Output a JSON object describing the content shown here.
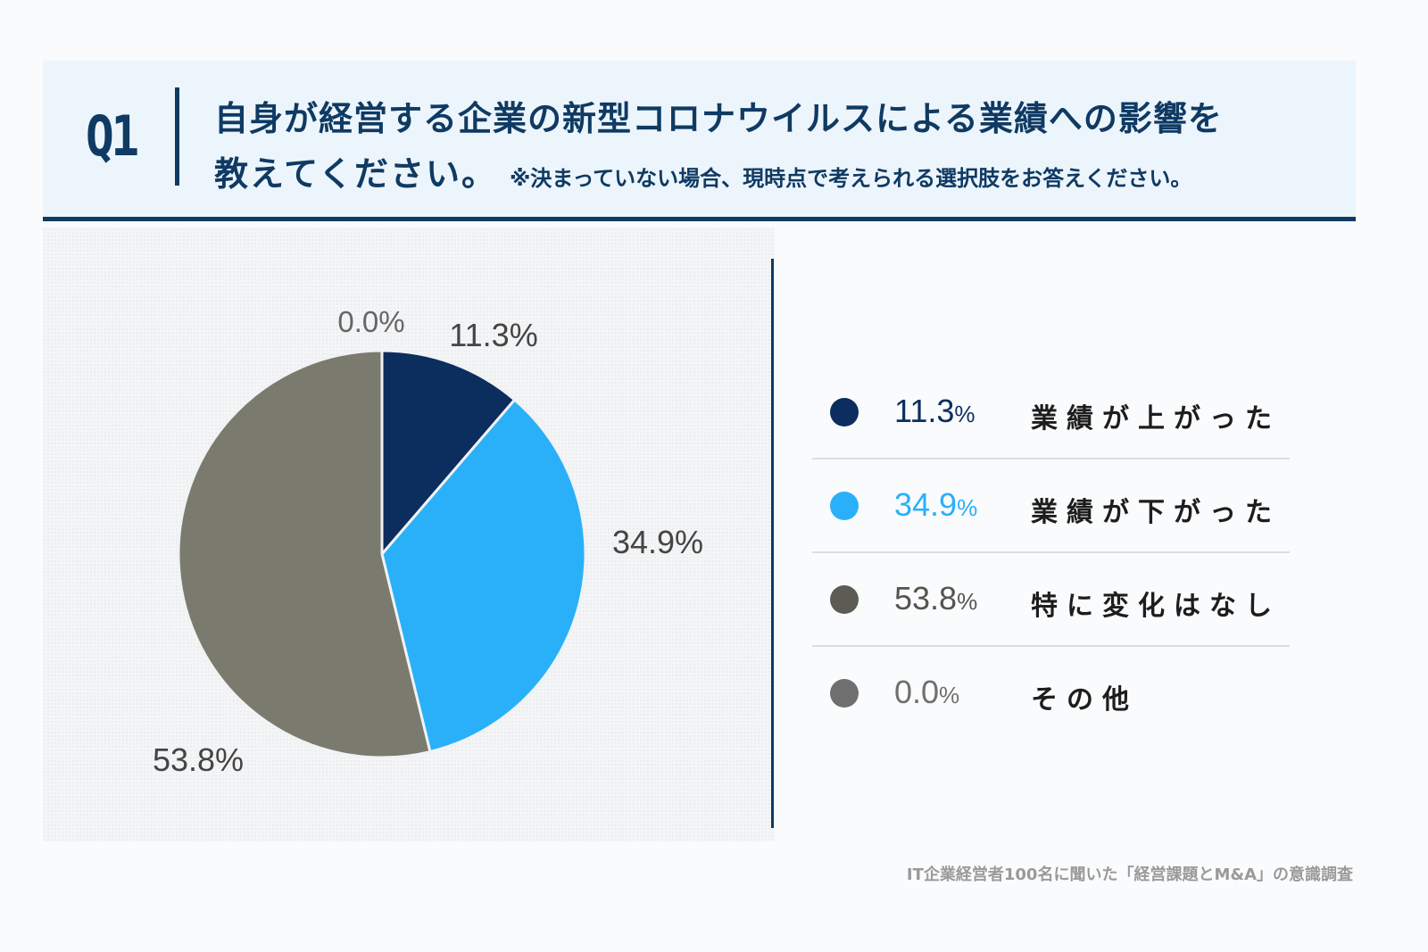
{
  "header": {
    "q_label": "Q1",
    "line1": "自身が経営する企業の新型コロナウイルスによる業績への影響を",
    "line2_main": "教えてください。",
    "line2_note": "※決まっていない場合、現時点で考えられる選択肢をお答えください。"
  },
  "chart_data": {
    "type": "pie",
    "slices": [
      {
        "label": "業績が上がった",
        "value": 11.3,
        "display": "11.3%",
        "color": "#0c2e5e"
      },
      {
        "label": "業績が下がった",
        "value": 34.9,
        "display": "34.9%",
        "color": "#2ab0f8"
      },
      {
        "label": "特に変化はなし",
        "value": 53.8,
        "display": "53.8%",
        "color": "#7a7a6e"
      },
      {
        "label": "その他",
        "value": 0.0,
        "display": "0.0%",
        "color": "#6f6f6f"
      }
    ],
    "legend_placement": "right"
  },
  "legend": [
    {
      "number": "11.3",
      "unit": "%",
      "label": "業績が上がった",
      "dot_color": "#0c2e5e",
      "text_color": "#0c2e5e"
    },
    {
      "number": "34.9",
      "unit": "%",
      "label": "業績が下がった",
      "dot_color": "#2ab0f8",
      "text_color": "#2ab0f8"
    },
    {
      "number": "53.8",
      "unit": "%",
      "label": "特に変化はなし",
      "dot_color": "#5c5c55",
      "text_color": "#55554f"
    },
    {
      "number": "0.0",
      "unit": "%",
      "label": "その他",
      "dot_color": "#6f6f6f",
      "text_color": "#6f6f6f"
    }
  ],
  "source": "IT企業経営者100名に聞いた「経営課題とM&A」の意識調査"
}
